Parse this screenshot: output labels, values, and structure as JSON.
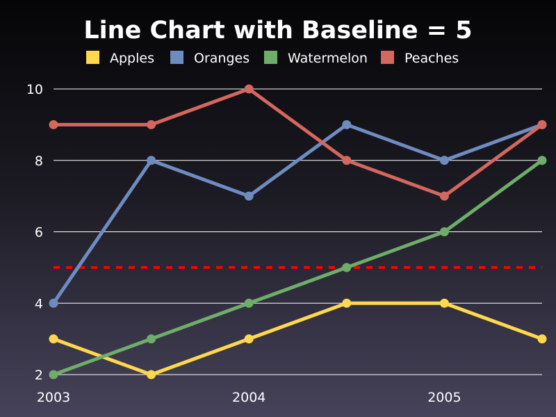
{
  "colors": {
    "background_top": "#050507",
    "background_bottom": "#46435a",
    "gridline": "#ffffff",
    "text": "#ffffff",
    "baseline": "#ff0000"
  },
  "chart_data": {
    "type": "line",
    "title": "Line Chart with Baseline = 5",
    "xlabel": "",
    "ylabel": "",
    "x": [
      2003,
      2003.5,
      2004,
      2004.5,
      2005,
      2005.5
    ],
    "x_ticks": [
      2003,
      2004,
      2005
    ],
    "x_tick_labels": [
      "2003",
      "2004",
      "2005"
    ],
    "xlim": [
      2003,
      2005.5
    ],
    "y_ticks": [
      2,
      4,
      6,
      8,
      10
    ],
    "y_tick_labels": [
      "2",
      "4",
      "6",
      "8",
      "10"
    ],
    "ylim": [
      2,
      10
    ],
    "grid": "horizontal",
    "legend_position": "top",
    "baseline": {
      "value": 5,
      "style": "dashed",
      "color": "#ff0000"
    },
    "series": [
      {
        "name": "Apples",
        "color": "#ffd84d",
        "values": [
          3,
          2,
          3,
          4,
          4,
          3
        ]
      },
      {
        "name": "Oranges",
        "color": "#6f8cc1",
        "values": [
          4,
          8,
          7,
          9,
          8,
          9
        ]
      },
      {
        "name": "Watermelon",
        "color": "#6fad6a",
        "values": [
          2,
          3,
          4,
          5,
          6,
          8
        ]
      },
      {
        "name": "Peaches",
        "color": "#d4675e",
        "values": [
          9,
          9,
          10,
          8,
          7,
          9
        ]
      }
    ]
  }
}
